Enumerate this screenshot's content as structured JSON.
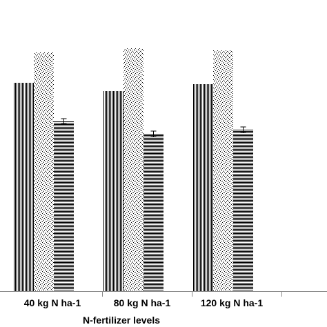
{
  "chart_data": {
    "type": "bar",
    "title": "",
    "xlabel": "N-fertilizer levels",
    "ylabel": "",
    "categories": [
      "40 kg N ha-1",
      "80 kg N ha-1",
      "120 kg N ha-1"
    ],
    "series": [
      {
        "pattern": "vertical-lines",
        "values": [
          302,
          290,
          300
        ],
        "errors": [
          0,
          0,
          0
        ]
      },
      {
        "pattern": "speckle",
        "values": [
          346,
          352,
          349
        ],
        "errors": [
          0,
          0,
          0
        ]
      },
      {
        "pattern": "horizontal-lines",
        "values": [
          246,
          228,
          234
        ],
        "errors": [
          4,
          4,
          4
        ]
      }
    ],
    "ylim": [
      0,
      370
    ],
    "grid": false,
    "legend": "none",
    "colors": {
      "bar_fill": "#000000",
      "bar_background": "#ffffff",
      "axis": "#888888"
    }
  }
}
